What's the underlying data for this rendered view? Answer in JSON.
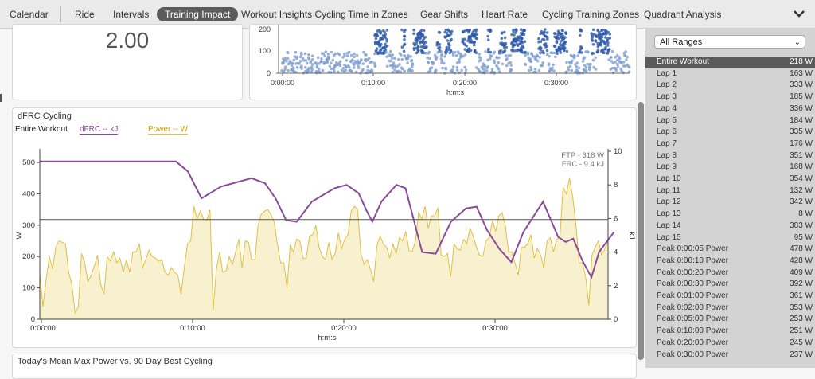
{
  "tabs": [
    {
      "label": "Calendar",
      "active": false
    },
    {
      "label": "Ride",
      "active": false
    },
    {
      "label": "Intervals",
      "active": false
    },
    {
      "label": "Training Impact",
      "active": true
    },
    {
      "label": "Workout Insights Cycling",
      "active": false
    },
    {
      "label": "Time in Zones",
      "active": false
    },
    {
      "label": "Gear Shifts",
      "active": false
    },
    {
      "label": "Heart Rate",
      "active": false
    },
    {
      "label": "Cycling Training Zones",
      "active": false
    },
    {
      "label": "Quadrant Analysis",
      "active": false
    }
  ],
  "metric_card": {
    "value": "2.00"
  },
  "scatter_card": {
    "xlabel": "h:m:s",
    "x_ticks": [
      "0:00:00",
      "0:10:00",
      "0:20:00",
      "0:30:00"
    ],
    "y_ticks": [
      "0",
      "100",
      "200"
    ]
  },
  "dfrc_chart": {
    "title": "dFRC Cycling",
    "scope": "Entire Workout",
    "legend_dfrc": "dFRC  -- kJ",
    "legend_power": "Power  -- W",
    "ftp_label": "FTP - 318 W",
    "frc_label": "FRC - 9.4 kJ",
    "xlabel": "h:m:s",
    "ylabel_left": "W",
    "ylabel_right": "kJ",
    "colors": {
      "dfrc": "#8a4a9c",
      "power": "#e0c040",
      "power_fill": "#f8f1cf",
      "ftp_line": "#555555"
    }
  },
  "chart_data": {
    "type": "line",
    "title": "dFRC Cycling",
    "xlabel": "h:m:s",
    "ylabel": "W",
    "ylabel_right": "kJ",
    "x_ticks": [
      "0:00:00",
      "0:10:00",
      "0:20:00",
      "0:30:00"
    ],
    "ylim": [
      0,
      500
    ],
    "ylim_right": [
      0,
      10
    ],
    "y_ticks": [
      0,
      100,
      200,
      300,
      400,
      500
    ],
    "y_ticks_right": [
      0,
      2,
      4,
      6,
      8,
      10
    ],
    "ftp_w": 318,
    "series": [
      {
        "name": "dFRC",
        "unit": "kJ",
        "axis": "right",
        "x_min": [
          0,
          9,
          9.8,
          10.7,
          12,
          14,
          14.9,
          15.6,
          16.3,
          17,
          18,
          19.5,
          20.3,
          21.1,
          21.6,
          22,
          22.6,
          23.6,
          24.2,
          25.3,
          26.2,
          27.2,
          28.2,
          28.9,
          29.6,
          30.4,
          31.2,
          32,
          33.3,
          34.3,
          34.8,
          35.3,
          35.9,
          36.5,
          37,
          38
        ],
        "values": [
          9.4,
          9.4,
          8.8,
          7.2,
          7.9,
          8.4,
          8.1,
          7.2,
          5.9,
          5.8,
          7,
          7.8,
          8,
          7.5,
          6.5,
          5.8,
          7,
          8,
          7.8,
          4,
          3.9,
          5.8,
          6.6,
          6.7,
          5.3,
          4.2,
          3.4,
          5.2,
          7,
          4.9,
          4.6,
          4.8,
          3.5,
          2.5,
          4,
          5.2
        ]
      },
      {
        "name": "Power",
        "unit": "W",
        "axis": "left",
        "values": [
          145,
          40,
          130,
          200,
          160,
          230,
          250,
          245,
          240,
          150,
          110,
          20,
          40,
          210,
          180,
          120,
          140,
          170,
          205,
          110,
          80,
          200,
          185,
          215,
          180,
          195,
          150,
          190,
          150,
          215,
          215,
          240,
          165,
          190,
          220,
          200,
          195,
          185,
          190,
          150,
          140,
          165,
          150,
          140,
          80,
          165,
          240,
          250,
          360,
          320,
          345,
          320,
          315,
          350,
          30,
          160,
          215,
          150,
          155,
          200,
          175,
          215,
          255,
          165,
          250,
          245,
          190,
          190,
          300,
          335,
          345,
          350,
          335,
          310,
          240,
          180,
          180,
          100,
          235,
          215,
          255,
          250,
          195,
          195,
          265,
          270,
          300,
          230,
          200,
          190,
          245,
          190,
          210,
          275,
          225,
          255,
          270,
          345,
          360,
          350,
          210,
          175,
          190,
          160,
          120,
          235,
          265,
          240,
          230,
          195,
          240,
          210,
          260,
          250,
          280,
          220,
          215,
          250,
          340,
          320,
          360,
          290,
          330,
          330,
          355,
          205,
          200,
          210,
          135,
          240,
          225,
          220,
          255,
          240,
          290,
          265,
          230,
          205,
          200,
          250,
          260,
          315,
          280,
          330,
          340,
          300,
          215,
          215,
          180,
          140,
          230,
          230,
          240,
          270,
          195,
          225,
          205,
          165,
          250,
          260,
          215,
          255,
          260,
          420,
          400,
          450,
          390,
          300,
          180,
          180,
          135,
          45,
          205,
          230,
          250,
          205,
          225,
          250
        ]
      }
    ]
  },
  "bottom_card": {
    "title": "Today's Mean Max Power vs. 90 Day Best Cycling"
  },
  "sidebar": {
    "select_value": "All Ranges",
    "rows": [
      {
        "label": "Entire Workout",
        "value": "218 W",
        "selected": true
      },
      {
        "label": "Lap 1",
        "value": "163 W"
      },
      {
        "label": "Lap 2",
        "value": "333 W"
      },
      {
        "label": "Lap 3",
        "value": "185 W"
      },
      {
        "label": "Lap 4",
        "value": "336 W"
      },
      {
        "label": "Lap 5",
        "value": "184 W"
      },
      {
        "label": "Lap 6",
        "value": "335 W"
      },
      {
        "label": "Lap 7",
        "value": "176 W"
      },
      {
        "label": "Lap 8",
        "value": "351 W"
      },
      {
        "label": "Lap 9",
        "value": "168 W"
      },
      {
        "label": "Lap 10",
        "value": "354 W"
      },
      {
        "label": "Lap 11",
        "value": "132 W"
      },
      {
        "label": "Lap 12",
        "value": "342 W"
      },
      {
        "label": "Lap 13",
        "value": "8 W"
      },
      {
        "label": "Lap 14",
        "value": "383 W"
      },
      {
        "label": "Lap 15",
        "value": "95 W"
      },
      {
        "label": "Peak 0:00:05 Power",
        "value": "478 W"
      },
      {
        "label": "Peak 0:00:10 Power",
        "value": "428 W"
      },
      {
        "label": "Peak 0:00:20 Power",
        "value": "409 W"
      },
      {
        "label": "Peak 0:00:30 Power",
        "value": "392 W"
      },
      {
        "label": "Peak 0:01:00 Power",
        "value": "361 W"
      },
      {
        "label": "Peak 0:02:00 Power",
        "value": "353 W"
      },
      {
        "label": "Peak 0:05:00 Power",
        "value": "253 W"
      },
      {
        "label": "Peak 0:10:00 Power",
        "value": "251 W"
      },
      {
        "label": "Peak 0:20:00 Power",
        "value": "245 W"
      },
      {
        "label": "Peak 0:30:00 Power",
        "value": "237 W"
      }
    ]
  }
}
